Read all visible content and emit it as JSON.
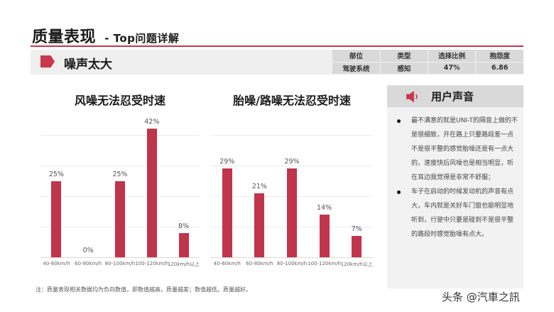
{
  "header": {
    "title": "质量表现",
    "subtitle": "- Top问题详解"
  },
  "issue": {
    "name": "噪声太大",
    "table": {
      "headers": [
        "部位",
        "类型",
        "选择比例",
        "抱怨度"
      ],
      "values": [
        "驾驶系统",
        "感知",
        "47%",
        "6.86"
      ]
    }
  },
  "colors": {
    "accent": "#c8374b",
    "bar": "#c0344c",
    "band": "#efefef",
    "table_bg": "#d9d9d9",
    "panel_bg": "#f2f2f2"
  },
  "chart_data": [
    {
      "type": "bar",
      "title": "风噪无法忍受时速",
      "categories": [
        "40-60km/h",
        "60-80km/h",
        "80-100km/h",
        "100-120km/h",
        "120km/h以上"
      ],
      "values": [
        25,
        0,
        25,
        42,
        8
      ],
      "value_labels": [
        "25%",
        "0%",
        "25%",
        "42%",
        "8%"
      ],
      "xlabel": "",
      "ylabel": "",
      "ylim": [
        0,
        50
      ],
      "grid": true,
      "legend": "none"
    },
    {
      "type": "bar",
      "title": "胎噪/路噪无法忍受时速",
      "categories": [
        "40-60km/h",
        "60-80km/h",
        "80-100km/h",
        "100-120km/h",
        "120km/h以上"
      ],
      "values": [
        29,
        21,
        29,
        14,
        7
      ],
      "value_labels": [
        "29%",
        "21%",
        "29%",
        "14%",
        "7%"
      ],
      "xlabel": "",
      "ylabel": "",
      "ylim": [
        0,
        50
      ],
      "grid": true,
      "legend": "none"
    }
  ],
  "voice": {
    "icon": "speaker-icon",
    "title": "用户声音",
    "items": [
      "最不满意的就是UNI-T的隔音上做的不是很细致，开在路上只要路段差一点不是很平整的感觉胎噪还是有一点大的，速度快后风噪也是相当明显，听在耳边我觉得是非常不舒服；",
      "车子在启动的时候发动机的声音有点大，车内就是关好车门窗也能明显地听到，行驶中只要是碰到不是很平整的路段时感觉胎噪有点大。"
    ]
  },
  "footer": {
    "note": "注：质量表现相关数据均为负向数值，即数值越高，质量越差；数值越低，质量越好。",
    "watermark": "头条 @汽車之訊"
  }
}
